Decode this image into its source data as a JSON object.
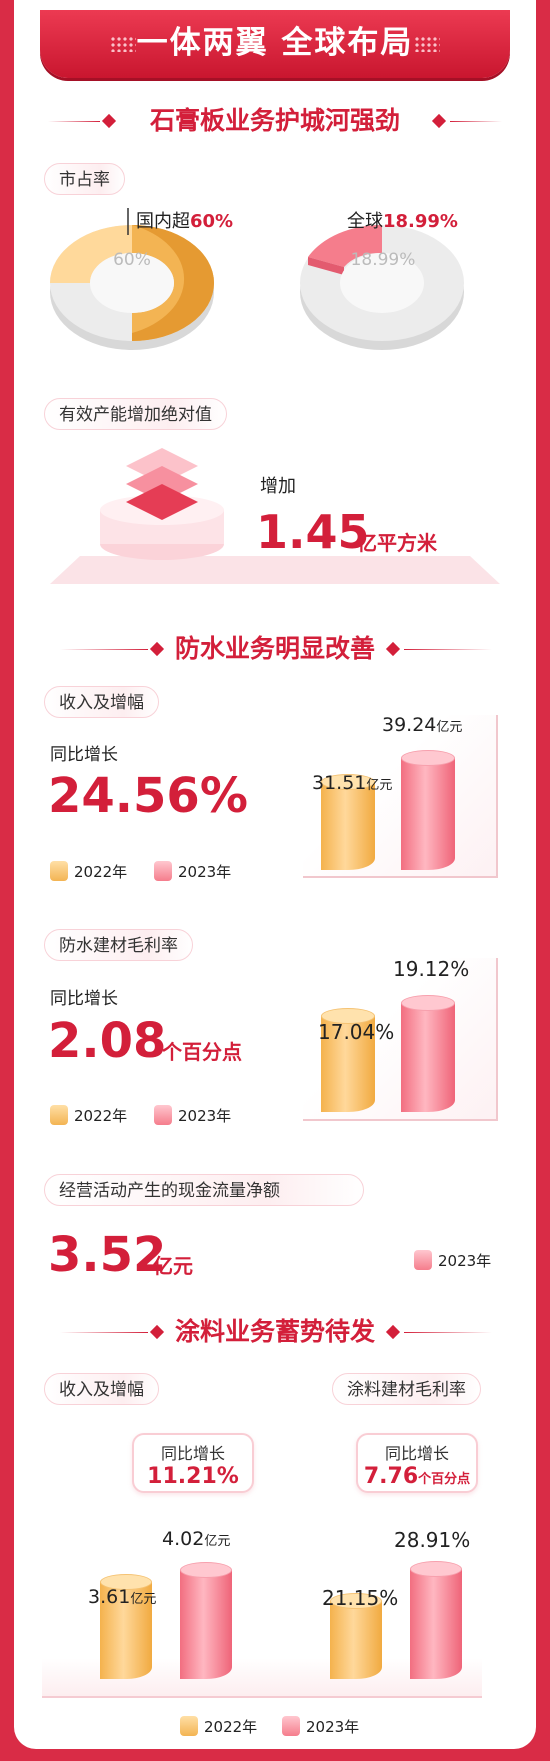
{
  "title": "一体两翼 全球布局",
  "sections": {
    "gypsum": "石膏板业务护城河强劲",
    "waterproof": "防水业务明显改善",
    "coating": "涂料业务蓄势待发"
  },
  "share": {
    "label": "市占率",
    "domestic_prefix": "国内超",
    "domestic_value": "60%",
    "domestic_center": "60%",
    "global_prefix": "全球",
    "global_value": "18.99%",
    "global_center": "18.99%"
  },
  "capacity": {
    "label": "有效产能增加绝对值",
    "prefix": "增加",
    "value": "1.45",
    "unit": "亿平方米"
  },
  "wp_revenue": {
    "label": "收入及增幅",
    "growth_label": "同比增长",
    "growth_value": "24.56%",
    "v2022": "31.51",
    "v2023": "39.24",
    "unit": "亿元",
    "leg2022": "2022年",
    "leg2023": "2023年"
  },
  "wp_margin": {
    "label": "防水建材毛利率",
    "growth_label": "同比增长",
    "growth_value": "2.08",
    "growth_unit": "个百分点",
    "v2022": "17.04%",
    "v2023": "19.12%",
    "leg2022": "2022年",
    "leg2023": "2023年"
  },
  "cashflow": {
    "label": "经营活动产生的现金流量净额",
    "value": "3.52",
    "unit": "亿元",
    "leg2023": "2023年"
  },
  "coat_revenue": {
    "label": "收入及增幅",
    "growth_label": "同比增长",
    "growth_value": "11.21%",
    "v2022": "3.61",
    "v2023": "4.02",
    "unit": "亿元"
  },
  "coat_margin": {
    "label": "涂料建材毛利率",
    "growth_label": "同比增长",
    "growth_value": "7.76",
    "growth_unit": "个百分点",
    "v2022": "21.15%",
    "v2023": "28.91%"
  },
  "legend": {
    "y2022": "2022年",
    "y2023": "2023年"
  },
  "colors": {
    "red": "#d31f3a",
    "orange": "#f4b24d",
    "pink": "#f26e80"
  },
  "chart_data": [
    {
      "type": "pie",
      "title": "市占率",
      "categories": [
        "国内",
        "全球"
      ],
      "values": [
        60,
        18.99
      ],
      "unit": "%"
    },
    {
      "type": "bar",
      "title": "防水 收入及增幅",
      "categories": [
        "2022年",
        "2023年"
      ],
      "values": [
        31.51,
        39.24
      ],
      "unit": "亿元"
    },
    {
      "type": "bar",
      "title": "防水建材毛利率",
      "categories": [
        "2022年",
        "2023年"
      ],
      "values": [
        17.04,
        19.12
      ],
      "unit": "%"
    },
    {
      "type": "bar",
      "title": "涂料 收入及增幅",
      "categories": [
        "2022年",
        "2023年"
      ],
      "values": [
        3.61,
        4.02
      ],
      "unit": "亿元"
    },
    {
      "type": "bar",
      "title": "涂料建材毛利率",
      "categories": [
        "2022年",
        "2023年"
      ],
      "values": [
        21.15,
        28.91
      ],
      "unit": "%"
    }
  ]
}
